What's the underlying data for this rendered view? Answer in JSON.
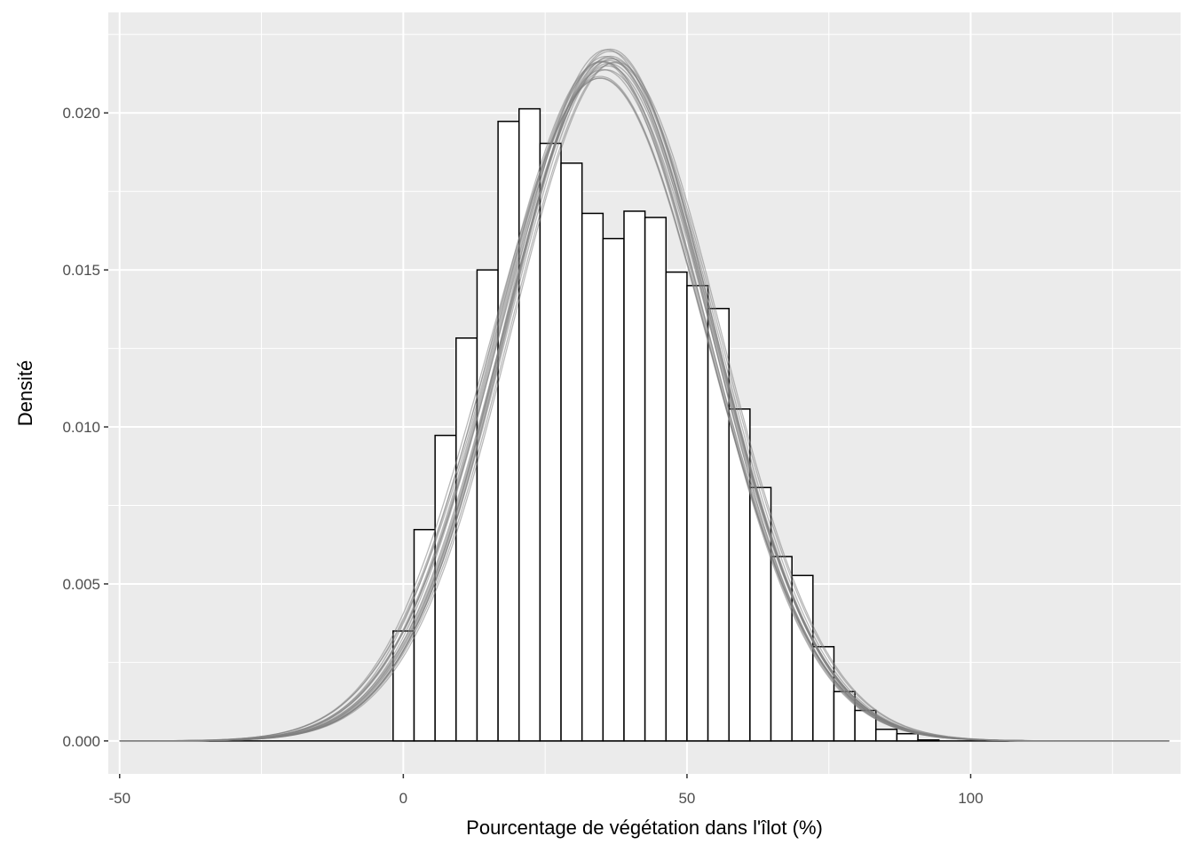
{
  "chart_data": {
    "type": "bar",
    "subtype": "histogram-with-density-overlays",
    "title": "",
    "xlabel": "Pourcentage de végétation dans l'îlot (%)",
    "ylabel": "Densité",
    "xlim": [
      -52,
      137
    ],
    "ylim": [
      -0.00105,
      0.0232
    ],
    "x_ticks": [
      {
        "value": -50,
        "label": "-50"
      },
      {
        "value": 0,
        "label": "0"
      },
      {
        "value": 50,
        "label": "50"
      },
      {
        "value": 100,
        "label": "100"
      }
    ],
    "y_ticks": [
      {
        "value": 0.0,
        "label": "0.000"
      },
      {
        "value": 0.005,
        "label": "0.005"
      },
      {
        "value": 0.01,
        "label": "0.010"
      },
      {
        "value": 0.015,
        "label": "0.015"
      },
      {
        "value": 0.02,
        "label": "0.020"
      }
    ],
    "grid": true,
    "background_color": "#ebebeb",
    "grid_color": "#ffffff",
    "bar_fill": "#ffffff",
    "bar_edge": "#000000",
    "density_color": "#7f7f7f",
    "histogram": {
      "bin_width": 3.7,
      "bin_start": -1.8,
      "values": [
        0.0035,
        0.00673,
        0.00973,
        0.01283,
        0.015,
        0.01973,
        0.02013,
        0.01903,
        0.0184,
        0.0168,
        0.016,
        0.01687,
        0.01667,
        0.01493,
        0.0145,
        0.01377,
        0.01057,
        0.00807,
        0.00587,
        0.00527,
        0.003,
        0.00157,
        0.00097,
        0.00037,
        0.00023,
        3e-05
      ]
    },
    "density_series": {
      "count": 20,
      "x_range": [
        -50,
        135
      ],
      "mean": 36,
      "sd": 18.5
    }
  }
}
